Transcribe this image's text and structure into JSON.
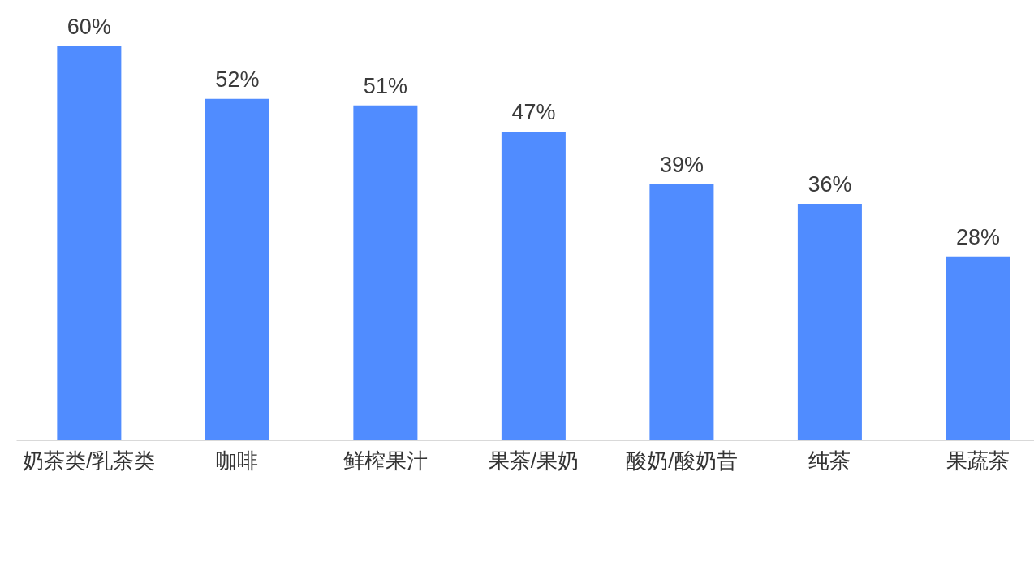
{
  "chart_data": {
    "type": "bar",
    "categories": [
      "奶茶类/乳茶类",
      "咖啡",
      "鲜榨果汁",
      "果茶/果奶",
      "酸奶/酸奶昔",
      "纯茶",
      "果蔬茶"
    ],
    "values": [
      60,
      52,
      51,
      47,
      39,
      36,
      28
    ],
    "value_labels": [
      "60%",
      "52%",
      "51%",
      "47%",
      "39%",
      "36%",
      "28%"
    ],
    "color": "#508cff"
  }
}
